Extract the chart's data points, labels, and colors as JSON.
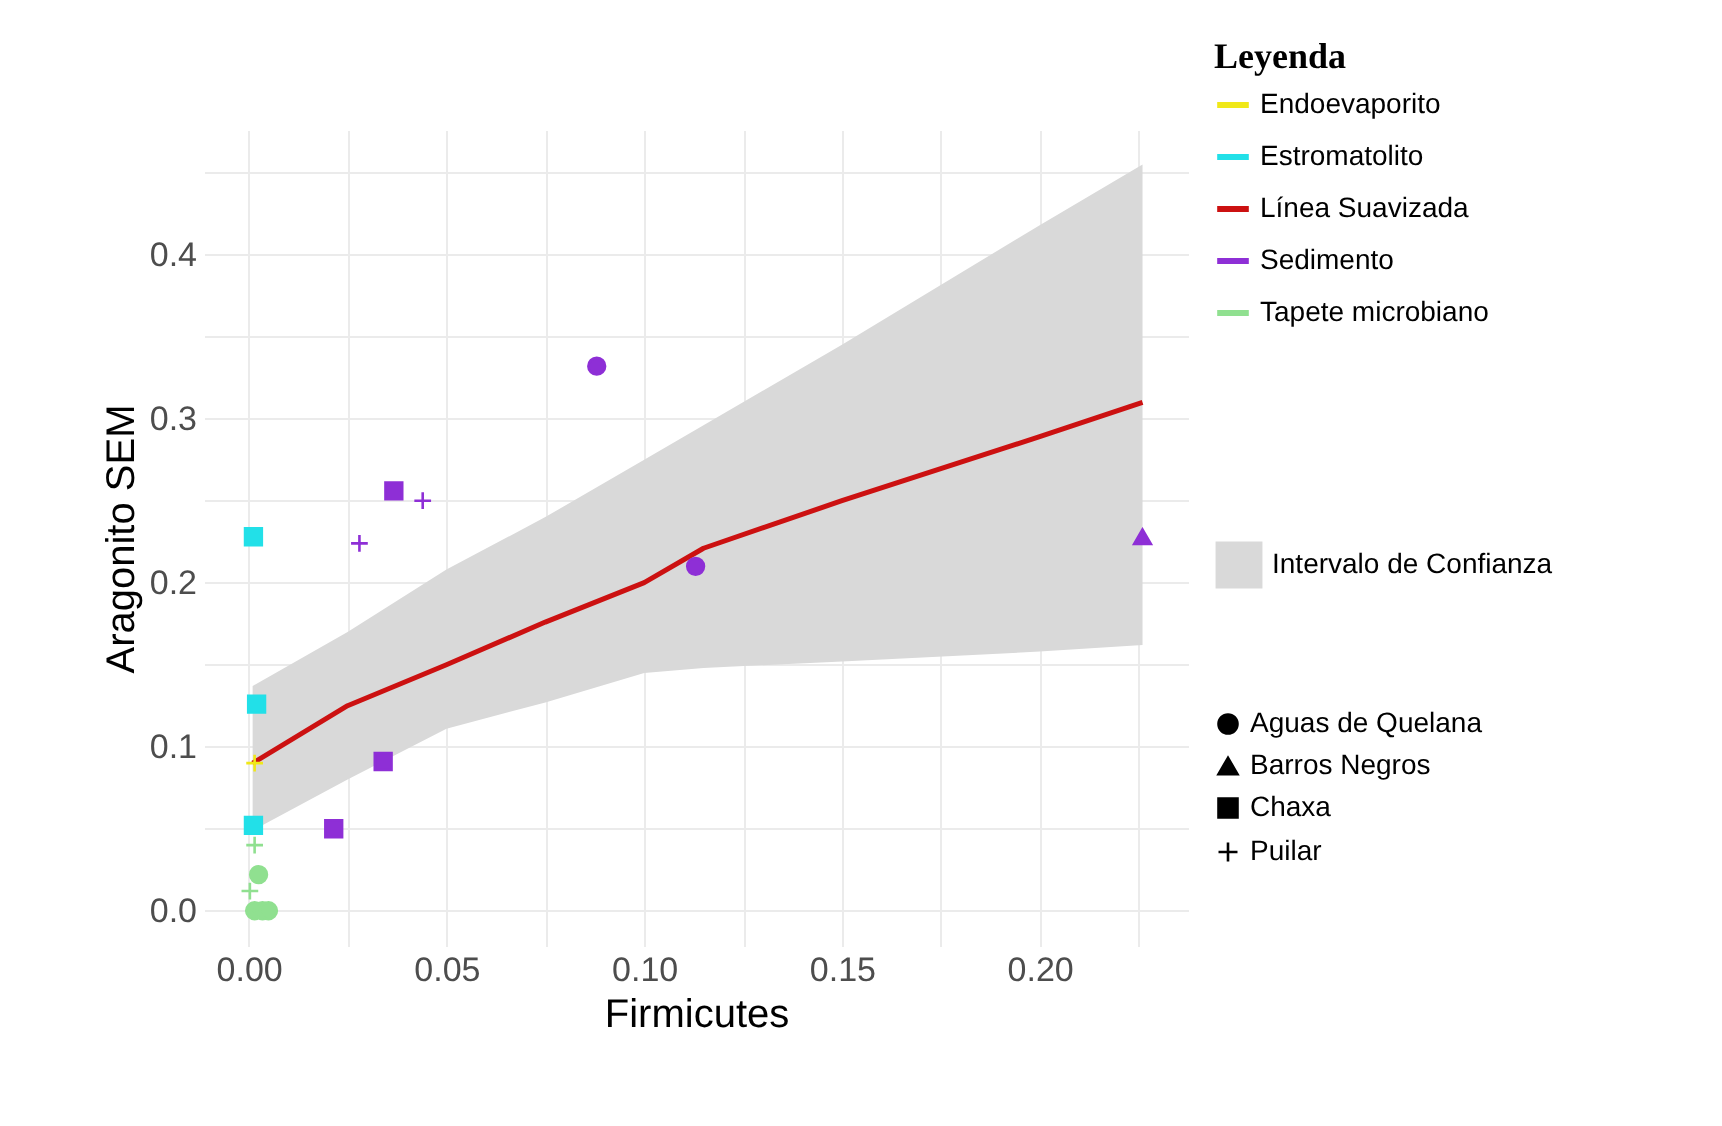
{
  "chart_data": {
    "type": "scatter",
    "xlabel": "Firmicutes",
    "ylabel": "Aragonito SEM",
    "legend_title": "Leyenda",
    "legend": "right",
    "grid": true,
    "xlim": [
      -0.0113,
      0.2375
    ],
    "ylim": [
      -0.0215,
      0.476
    ],
    "xticks": [
      {
        "value": 0,
        "label": "0.00"
      },
      {
        "value": 0.025,
        "label": null
      },
      {
        "value": 0.05,
        "label": "0.05"
      },
      {
        "value": 0.075,
        "label": null
      },
      {
        "value": 0.1,
        "label": "0.10"
      },
      {
        "value": 0.125,
        "label": null
      },
      {
        "value": 0.15,
        "label": "0.15"
      },
      {
        "value": 0.175,
        "label": null
      },
      {
        "value": 0.2,
        "label": "0.20"
      },
      {
        "value": 0.225,
        "label": null
      }
    ],
    "yticks": [
      {
        "value": 0,
        "label": "0.0"
      },
      {
        "value": 0.05,
        "label": null
      },
      {
        "value": 0.1,
        "label": "0.1"
      },
      {
        "value": 0.15,
        "label": null
      },
      {
        "value": 0.2,
        "label": "0.2"
      },
      {
        "value": 0.25,
        "label": null
      },
      {
        "value": 0.3,
        "label": "0.3"
      },
      {
        "value": 0.35,
        "label": null
      },
      {
        "value": 0.4,
        "label": "0.4"
      },
      {
        "value": 0.45,
        "label": null
      }
    ],
    "series": [
      {
        "name": "Endoevaporito",
        "color": "#f0e818",
        "marker": "cross",
        "x": [
          0.0015
        ],
        "values": [
          0.09
        ]
      },
      {
        "name": "Estromatolito",
        "color": "#22e0e8",
        "marker": "square",
        "x": [
          0.0012,
          0.002,
          0.0012
        ],
        "values": [
          0.228,
          0.126,
          0.052
        ]
      },
      {
        "name": "Línea Suavizada",
        "color": "#cc1111",
        "type": "line",
        "x": [
          0.001,
          0.025,
          0.05,
          0.075,
          0.1,
          0.115,
          0.15,
          0.2,
          0.226
        ],
        "values": [
          0.09,
          0.125,
          0.15,
          0.176,
          0.2,
          0.221,
          0.25,
          0.289,
          0.31
        ],
        "lower": [
          0.049,
          0.08,
          0.111,
          0.127,
          0.145,
          0.148,
          0.152,
          0.158,
          0.162
        ],
        "upper": [
          0.137,
          0.17,
          0.208,
          0.24,
          0.275,
          0.296,
          0.345,
          0.418,
          0.455
        ]
      },
      {
        "name": "Sedimento",
        "color": "#8e2fd6",
        "marker": "square",
        "x": [
          0.0367,
          0.034,
          0.0215
        ],
        "values": [
          0.256,
          0.091,
          0.05
        ]
      },
      {
        "color": "#8e2fd6",
        "marker": "cross",
        "x": [
          0.028,
          0.044
        ],
        "values": [
          0.224,
          0.25
        ]
      },
      {
        "color": "#8e2fd6",
        "marker": "circle",
        "x": [
          0.088,
          0.113
        ],
        "values": [
          0.332,
          0.21
        ]
      },
      {
        "color": "#8e2fd6",
        "marker": "triangle",
        "x": [
          0.226
        ],
        "values": [
          0.228
        ]
      },
      {
        "name": "Tapete microbiano",
        "color": "#90e090",
        "marker": "circle",
        "x": [
          0.0025,
          0.0015,
          0.0035,
          0.005
        ],
        "values": [
          0.022,
          0.0,
          0.0,
          0.0
        ]
      },
      {
        "color": "#90e090",
        "marker": "cross",
        "x": [
          0.0015,
          0.0003
        ],
        "values": [
          0.04,
          0.012
        ]
      },
      {
        "name": "Intervalo de Confianza",
        "color": "#d9d9d9",
        "type": "area"
      },
      {
        "name": "Aguas de Quelana",
        "color": "#000000",
        "marker": "circle"
      },
      {
        "name": "Barros Negros",
        "color": "#000000",
        "marker": "triangle"
      },
      {
        "name": "Chaxa",
        "color": "#000000",
        "marker": "square"
      },
      {
        "name": "Puilar",
        "color": "#000000",
        "marker": "cross"
      }
    ]
  }
}
